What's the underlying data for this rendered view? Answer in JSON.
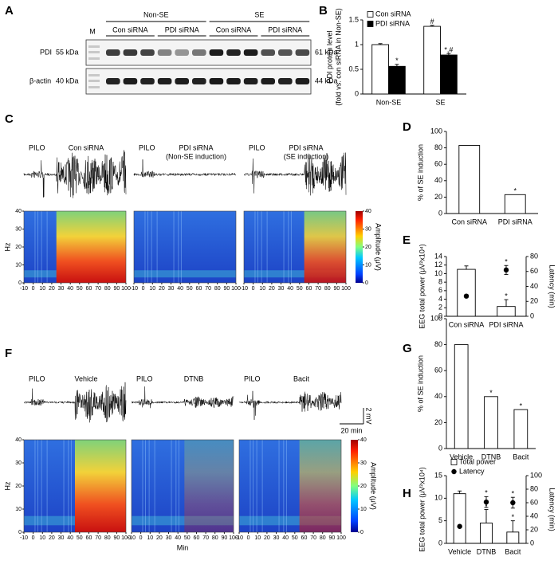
{
  "panel_labels": [
    "A",
    "B",
    "C",
    "D",
    "E",
    "F",
    "G",
    "H"
  ],
  "blot": {
    "marker": "M",
    "groups": [
      {
        "label": "Non-SE",
        "subgroups": [
          "Con siRNA",
          "PDI siRNA"
        ]
      },
      {
        "label": "SE",
        "subgroups": [
          "Con siRNA",
          "PDI siRNA"
        ]
      }
    ],
    "rows": [
      {
        "protein": "PDI",
        "size": "55 kDa",
        "observed": "61 kDa"
      },
      {
        "protein": "β-actin",
        "size": "40 kDa",
        "observed": "44 kDa"
      }
    ]
  },
  "eeg": [
    {
      "panels": [
        {
          "drug": "PILO",
          "treatment": [
            "Con siRNA"
          ]
        },
        {
          "drug": "PILO",
          "treatment": [
            "PDI siRNA",
            "(Non-SE induction)"
          ]
        },
        {
          "drug": "PILO",
          "treatment": [
            "PDI siRNA",
            "(SE induction)"
          ]
        }
      ],
      "ylabel": "Hz",
      "xticks": [
        -10,
        0,
        10,
        20,
        30,
        40,
        50,
        60,
        70,
        80,
        90,
        100
      ],
      "yticks": [
        0,
        10,
        20,
        30,
        40
      ],
      "colorbar_label": "Amplitude (μV)",
      "colorbar_ticks": [
        0,
        10,
        20,
        30,
        40
      ]
    },
    {
      "panels": [
        {
          "drug": "PILO",
          "treatment": [
            "Vehicle"
          ]
        },
        {
          "drug": "PILO",
          "treatment": [
            "DTNB"
          ]
        },
        {
          "drug": "PILO",
          "treatment": [
            "Bacit"
          ]
        }
      ],
      "ylabel": "Hz",
      "xticks": [
        -10,
        0,
        10,
        20,
        30,
        40,
        50,
        60,
        70,
        80,
        90,
        100
      ],
      "yticks": [
        0,
        10,
        20,
        30,
        40
      ],
      "colorbar_label": "Amplitude (μV)",
      "colorbar_ticks": [
        0,
        10,
        20,
        30,
        40
      ],
      "xlabel": "Min",
      "scalebar": {
        "vertical": "2 mV",
        "horizontal": "20 min"
      }
    }
  ],
  "chart_data": [
    {
      "type": "bar",
      "ylabel": [
        "PDI protein level",
        "(fold vs. con siRNA in Non-SE)"
      ],
      "categories": [
        "Non-SE",
        "SE"
      ],
      "series": [
        {
          "name": "Con siRNA",
          "color": "#ffffff",
          "values": [
            1.0,
            1.37
          ],
          "errors": [
            0.02,
            0.02
          ],
          "significance": [
            null,
            "#"
          ]
        },
        {
          "name": "PDI siRNA",
          "color": "#000000",
          "values": [
            0.56,
            0.79
          ],
          "errors": [
            0.04,
            0.03
          ],
          "significance": [
            "*",
            "*,#"
          ]
        }
      ],
      "ylim": [
        0,
        1.5
      ],
      "yticks": [
        0,
        0.5,
        1,
        1.5
      ],
      "legend": "top-left"
    },
    {
      "type": "bar",
      "ylabel": [
        "% of SE induction"
      ],
      "categories": [
        "Con siRNA",
        "PDI siRNA"
      ],
      "series": [
        {
          "color": "#ffffff",
          "values": [
            83,
            23
          ],
          "significance": [
            null,
            "*"
          ]
        }
      ],
      "ylim": [
        0,
        100
      ],
      "yticks": [
        0,
        20,
        40,
        60,
        80,
        100
      ]
    },
    {
      "type": "bar",
      "ylabel": [
        "EEG total power (μV²x10⁴)"
      ],
      "y2label": "Latency (min)",
      "categories": [
        "Con siRNA",
        "PDI siRNA"
      ],
      "series": [
        {
          "color": "#ffffff",
          "values": [
            11,
            2.3
          ],
          "errors": [
            0.8,
            1.6
          ],
          "significance": [
            null,
            "*"
          ]
        },
        {
          "color": "#000000",
          "axis": "y2",
          "values": [
            27,
            62
          ],
          "errors": [
            2,
            6
          ],
          "significance": [
            null,
            "*"
          ]
        }
      ],
      "ylim": [
        0,
        14
      ],
      "yticks": [
        0,
        2,
        4,
        6,
        8,
        10,
        12,
        14
      ],
      "y2lim": [
        0,
        80
      ],
      "y2ticks": [
        0,
        20,
        40,
        60,
        80
      ]
    },
    {
      "type": "bar",
      "ylabel": [
        "% of SE induction"
      ],
      "categories": [
        "Vehicle",
        "DTNB",
        "Bacit"
      ],
      "series": [
        {
          "color": "#ffffff",
          "values": [
            80,
            40,
            30
          ],
          "significance": [
            null,
            "*",
            "*"
          ]
        }
      ],
      "ylim": [
        0,
        100
      ],
      "yticks": [
        0,
        20,
        40,
        60,
        80,
        100
      ]
    },
    {
      "type": "bar",
      "ylabel": [
        "EEG total power (μV²x10⁴)"
      ],
      "y2label": "Latency (min)",
      "categories": [
        "Vehicle",
        "DTNB",
        "Bacit"
      ],
      "series": [
        {
          "name": "Total power",
          "color": "#ffffff",
          "values": [
            11,
            4.5,
            2.5
          ],
          "errors": [
            0.6,
            3,
            2.5
          ],
          "significance": [
            null,
            "*",
            "*"
          ]
        },
        {
          "name": "Latency",
          "color": "#000000",
          "axis": "y2",
          "values": [
            25,
            61,
            60
          ],
          "errors": [
            2,
            8,
            8
          ],
          "significance": [
            null,
            "*",
            "*"
          ]
        }
      ],
      "ylim": [
        0,
        15
      ],
      "yticks": [
        0,
        5,
        10,
        15
      ],
      "y2lim": [
        0,
        100
      ],
      "y2ticks": [
        0,
        20,
        40,
        60,
        80,
        100
      ],
      "legend": "top-left"
    }
  ]
}
